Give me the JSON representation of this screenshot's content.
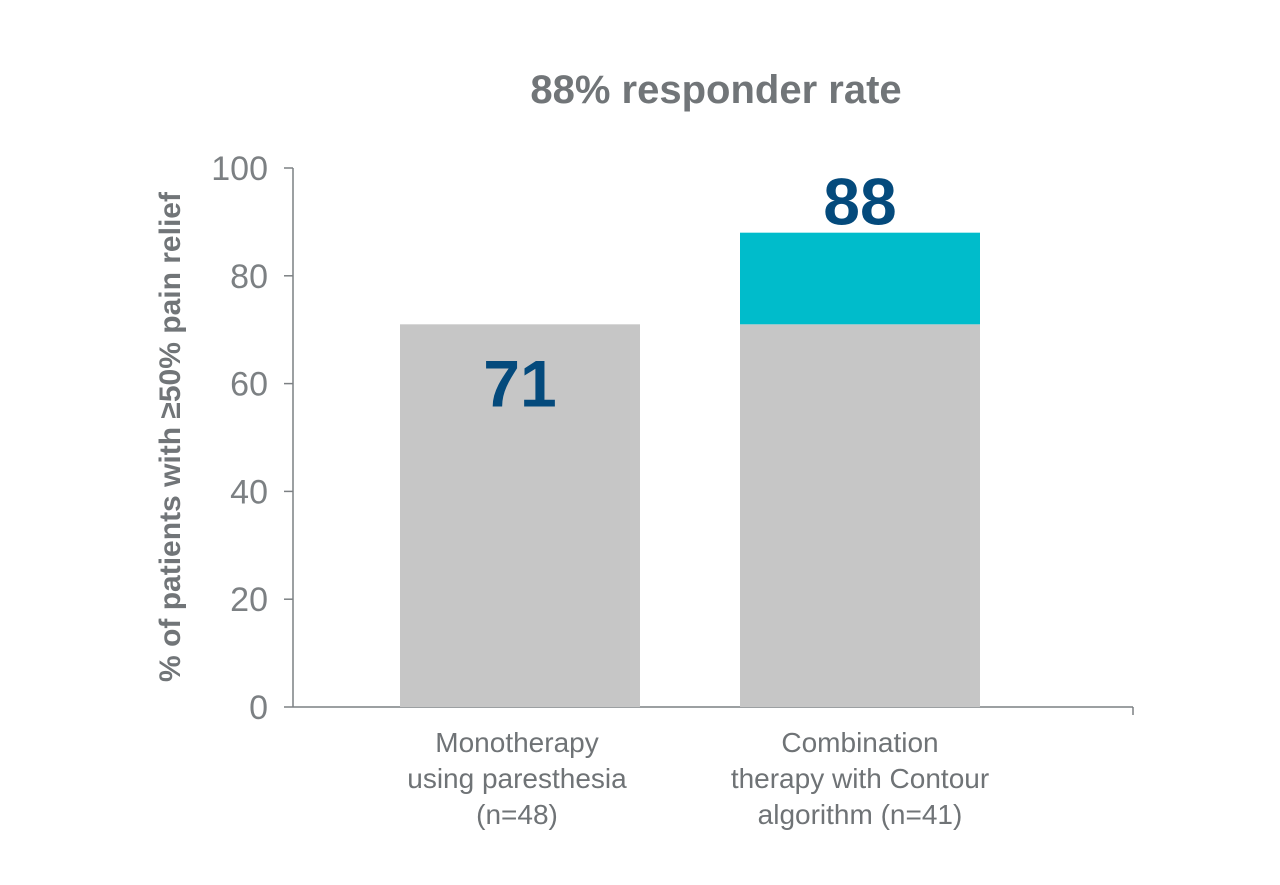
{
  "chart_data": {
    "type": "bar",
    "title": "88% responder rate",
    "xlabel": "",
    "ylabel": "% of patients with ≥50% pain relief",
    "ylim": [
      0,
      100
    ],
    "yticks": [
      0,
      20,
      40,
      60,
      80,
      100
    ],
    "categories": [
      [
        "Monotherapy",
        "using paresthesia",
        "(n=48)"
      ],
      [
        "Combination",
        "therapy with Contour",
        "algorithm (n=41)"
      ]
    ],
    "values": [
      71,
      88
    ],
    "value_labels": [
      "71",
      "88"
    ],
    "stacked_components": [
      {
        "base": 71,
        "increment": 0
      },
      {
        "base": 71,
        "increment": 17
      }
    ],
    "grid": false,
    "legend": "none"
  },
  "colors": {
    "base_bar": "#c6c6c6",
    "increment_bar": "#00bccb",
    "value_label": "#044a7c",
    "axis": "#7c8083",
    "title": "#717578"
  }
}
